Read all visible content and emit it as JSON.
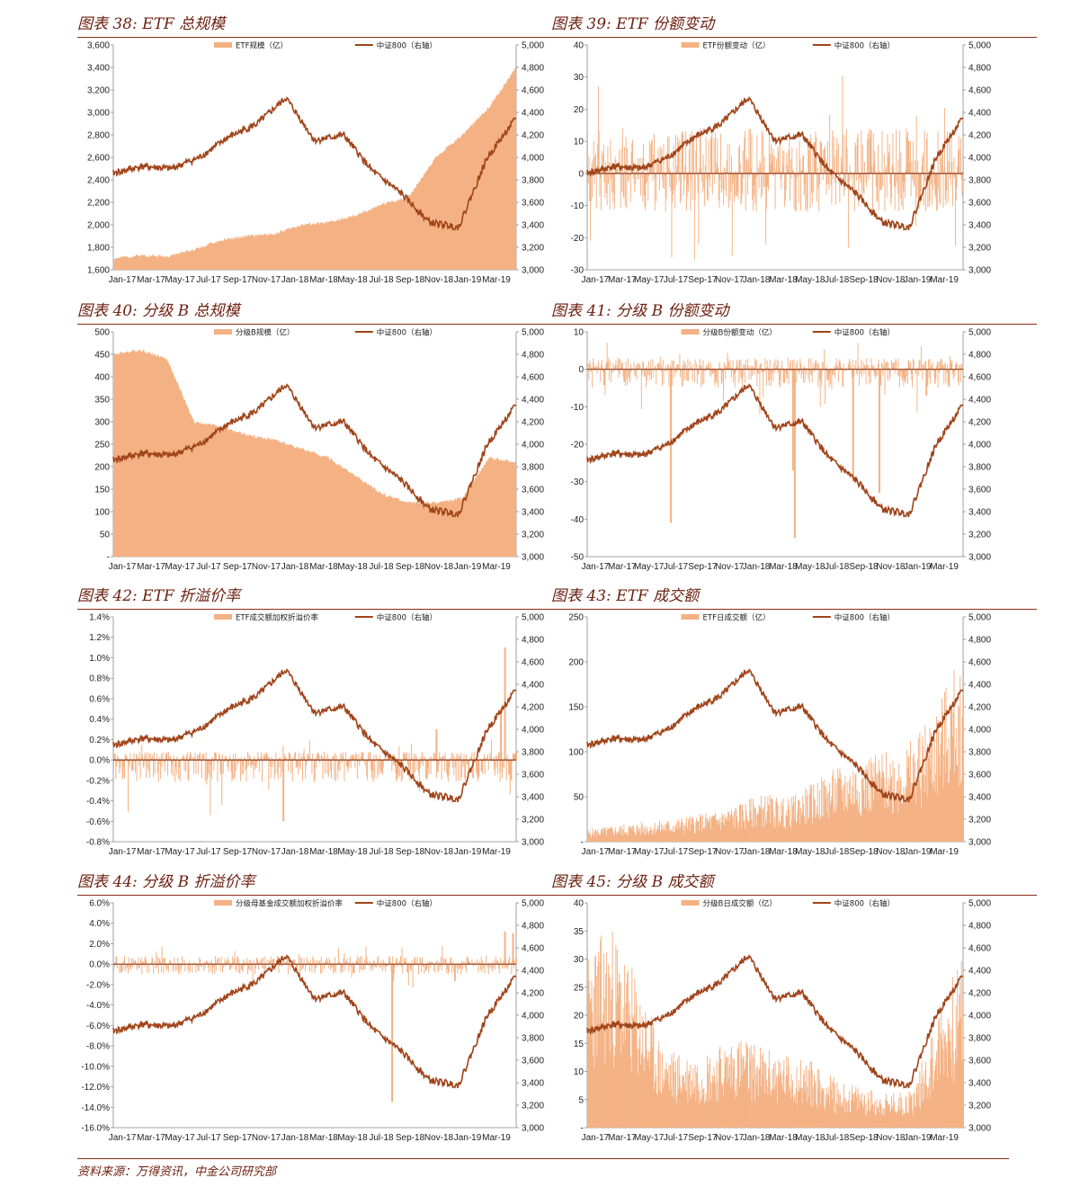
{
  "source": "资料来源：万得资讯，中金公司研究部",
  "colors": {
    "area": "#f4b183",
    "line": "#a0441a",
    "title": "#6b1e0e",
    "rule": "#8b2a19"
  },
  "x_labels": [
    "Jan-17",
    "Mar-17",
    "May-17",
    "Jul-17",
    "Sep-17",
    "Nov-17",
    "Jan-18",
    "Mar-18",
    "May-18",
    "Jul-18",
    "Sep-18",
    "Nov-18",
    "Jan-19",
    "Mar-19"
  ],
  "right_ticks": [
    "3,000",
    "3,200",
    "3,400",
    "3,600",
    "3,800",
    "4,000",
    "4,200",
    "4,400",
    "4,600",
    "4,800",
    "5,000"
  ],
  "csi800_line": {
    "name": "中证800（右轴）",
    "x": [
      "Jan-17",
      "Mar-17",
      "May-17",
      "Jul-17",
      "Sep-17",
      "Nov-17",
      "Jan-18",
      "Mar-18",
      "May-18",
      "Jul-18",
      "Sep-18",
      "Nov-18",
      "Jan-19",
      "Mar-19",
      "Apr-19"
    ],
    "values": [
      3860,
      3920,
      3900,
      4000,
      4180,
      4300,
      4530,
      4150,
      4200,
      3880,
      3680,
      3420,
      3380,
      4000,
      4350
    ]
  },
  "charts": [
    {
      "id": "c38",
      "title": "图表 38: ETF 总规模",
      "legend_bar": "ETF规模（亿）",
      "chart_data": {
        "type": "area",
        "left_ticks": [
          "1,600",
          "1,800",
          "2,000",
          "2,200",
          "2,400",
          "2,600",
          "2,800",
          "3,000",
          "3,200",
          "3,400",
          "3,600"
        ],
        "ylim": [
          1600,
          3600
        ],
        "y2lim": [
          3000,
          5000
        ],
        "series_area": [
          1700,
          1730,
          1720,
          1780,
          1860,
          1900,
          1920,
          2000,
          2020,
          2080,
          2180,
          2250,
          2600,
          2800,
          3050,
          3400
        ],
        "area_style": "smooth"
      }
    },
    {
      "id": "c39",
      "title": "图表 39: ETF 份额变动",
      "legend_bar": "ETF份额变动（亿）",
      "chart_data": {
        "type": "bar",
        "left_ticks": [
          "-30",
          "-20",
          "-10",
          "0",
          "10",
          "20",
          "30",
          "40"
        ],
        "ylim": [
          -30,
          40
        ],
        "y2lim": [
          3000,
          5000
        ],
        "bar_zero": 0,
        "bar_amp": 14,
        "bar_neg_amp": 12,
        "bar_seed": 3
      }
    },
    {
      "id": "c40",
      "title": "图表 40:  分级 B 总规模",
      "legend_bar": "分级B规模（亿）",
      "chart_data": {
        "type": "area",
        "left_ticks": [
          "-",
          "50",
          "100",
          "150",
          "200",
          "250",
          "300",
          "350",
          "400",
          "450",
          "500"
        ],
        "ylim": [
          0,
          500
        ],
        "y2lim": [
          3000,
          5000
        ],
        "series_area": [
          450,
          460,
          440,
          300,
          290,
          270,
          260,
          240,
          220,
          180,
          140,
          120,
          120,
          130,
          220,
          210
        ],
        "area_style": "smooth"
      }
    },
    {
      "id": "c41",
      "title": "图表 41:  分级 B 份额变动",
      "legend_bar": "分级B份额变动（亿）",
      "chart_data": {
        "type": "bar",
        "left_ticks": [
          "-50",
          "-40",
          "-30",
          "-20",
          "-10",
          "0",
          "10"
        ],
        "ylim": [
          -50,
          10
        ],
        "y2lim": [
          3000,
          5000
        ],
        "bar_zero": 0,
        "bar_amp": 3,
        "bar_neg_amp": 5,
        "bar_seed": 7,
        "spikes": [
          [
            0.22,
            -41
          ],
          [
            0.22,
            -20
          ],
          [
            0.55,
            -45
          ],
          [
            0.545,
            -27
          ],
          [
            0.705,
            -30
          ],
          [
            0.775,
            -33
          ],
          [
            0.9,
            -7
          ]
        ]
      }
    },
    {
      "id": "c42",
      "title": "图表 42: ETF 折溢价率",
      "legend_bar": "ETF成交额加权折溢价率",
      "chart_data": {
        "type": "bar",
        "left_ticks": [
          "-0.8%",
          "-0.6%",
          "-0.4%",
          "-0.2%",
          "0.0%",
          "0.2%",
          "0.4%",
          "0.6%",
          "0.8%",
          "1.0%",
          "1.2%",
          "1.4%"
        ],
        "ylim": [
          -0.8,
          1.4
        ],
        "y2lim": [
          3000,
          5000
        ],
        "bar_zero": 0,
        "bar_amp": 0.08,
        "bar_neg_amp": 0.22,
        "bar_seed": 11,
        "spikes": [
          [
            0.42,
            -0.6
          ],
          [
            0.97,
            1.1
          ],
          [
            0.96,
            0.5
          ],
          [
            0.8,
            0.3
          ]
        ]
      }
    },
    {
      "id": "c43",
      "title": "图表 43: ETF 成交额",
      "legend_bar": "ETF日成交额（亿）",
      "chart_data": {
        "type": "bar",
        "left_ticks": [
          "-",
          "50",
          "100",
          "150",
          "200",
          "250"
        ],
        "ylim": [
          0,
          250
        ],
        "y2lim": [
          3000,
          5000
        ],
        "bar_envelope": [
          12,
          15,
          18,
          20,
          24,
          28,
          35,
          45,
          40,
          55,
          70,
          80,
          85,
          95,
          130,
          180
        ],
        "bar_seed": 5
      }
    },
    {
      "id": "c44",
      "title": "图表 44:  分级 B 折溢价率",
      "legend_bar": "分级母基金成交额加权折溢价率",
      "chart_data": {
        "type": "bar",
        "left_ticks": [
          "-16.0%",
          "-14.0%",
          "-12.0%",
          "-10.0%",
          "-8.0%",
          "-6.0%",
          "-4.0%",
          "-2.0%",
          "0.0%",
          "2.0%",
          "4.0%",
          "6.0%"
        ],
        "ylim": [
          -16,
          6
        ],
        "y2lim": [
          3000,
          5000
        ],
        "bar_zero": 0,
        "bar_amp": 0.8,
        "bar_neg_amp": 1.0,
        "bar_seed": 19,
        "spikes": [
          [
            0.69,
            -13.5
          ],
          [
            0.97,
            3.2
          ],
          [
            0.99,
            3.0
          ]
        ]
      }
    },
    {
      "id": "c45",
      "title": "图表 45:  分级 B 成交额",
      "legend_bar": "分级B日成交额（亿）",
      "chart_data": {
        "type": "bar",
        "left_ticks": [
          "-",
          "5",
          "10",
          "15",
          "20",
          "25",
          "30",
          "35",
          "40"
        ],
        "ylim": [
          0,
          40
        ],
        "y2lim": [
          3000,
          5000
        ],
        "bar_envelope": [
          28,
          30,
          22,
          12,
          11,
          12,
          14,
          12,
          11,
          10,
          7,
          6,
          5,
          6,
          18,
          26
        ],
        "bar_seed": 23
      }
    }
  ]
}
